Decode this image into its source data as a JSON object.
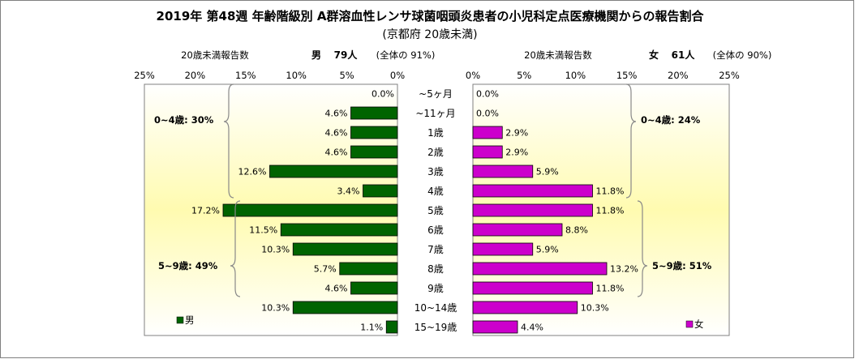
{
  "chart_data": {
    "type": "bar",
    "title": "2019年 第48週 年齢階級別 A群溶血性レンサ球菌咽頭炎患者の小児科定点医療機関からの報告割合",
    "subtitle": "(京都府 20歳未満)",
    "categories": [
      "~5ヶ月",
      "~11ヶ月",
      "1歳",
      "2歳",
      "3歳",
      "4歳",
      "5歳",
      "6歳",
      "7歳",
      "8歳",
      "9歳",
      "10~14歳",
      "15~19歳"
    ],
    "xlim": [
      0,
      25
    ],
    "ticks": [
      "25%",
      "20%",
      "15%",
      "10%",
      "5%",
      "0%"
    ],
    "ticks_right": [
      "0%",
      "5%",
      "10%",
      "15%",
      "20%",
      "25%"
    ],
    "series": [
      {
        "name": "男",
        "values": [
          0.0,
          4.6,
          4.6,
          4.6,
          12.6,
          3.4,
          17.2,
          11.5,
          10.3,
          5.7,
          4.6,
          10.3,
          1.1
        ],
        "labels": [
          "0.0%",
          "4.6%",
          "4.6%",
          "4.6%",
          "12.6%",
          "3.4%",
          "17.2%",
          "11.5%",
          "10.3%",
          "5.7%",
          "4.6%",
          "10.3%",
          "1.1%"
        ],
        "color": "#006400"
      },
      {
        "name": "女",
        "values": [
          0.0,
          0.0,
          2.9,
          2.9,
          5.9,
          11.8,
          11.8,
          8.8,
          5.9,
          13.2,
          11.8,
          10.3,
          4.4
        ],
        "labels": [
          "0.0%",
          "0.0%",
          "2.9%",
          "2.9%",
          "5.9%",
          "11.8%",
          "11.8%",
          "8.8%",
          "5.9%",
          "13.2%",
          "11.8%",
          "10.3%",
          "4.4%"
        ],
        "color": "#cc00cc"
      }
    ],
    "left_header": {
      "count_label": "20歳未満報告数",
      "sex": "男",
      "count": "79人",
      "share": "(全体の 91%)"
    },
    "right_header": {
      "count_label": "20歳未満報告数",
      "sex": "女",
      "count": "61人",
      "share": "(全体の 90%)"
    },
    "annotations": {
      "male_0_4": "0~4歳: 30%",
      "male_5_9": "5~9歳: 49%",
      "female_0_4": "0~4歳: 24%",
      "female_5_9": "5~9歳: 51%"
    },
    "legend": {
      "male": "男",
      "female": "女"
    },
    "colors": {
      "male": "#006400",
      "female": "#cc00cc",
      "plot_bg_center": "#fffbb0",
      "plot_bg_edge": "#ffffff"
    }
  }
}
